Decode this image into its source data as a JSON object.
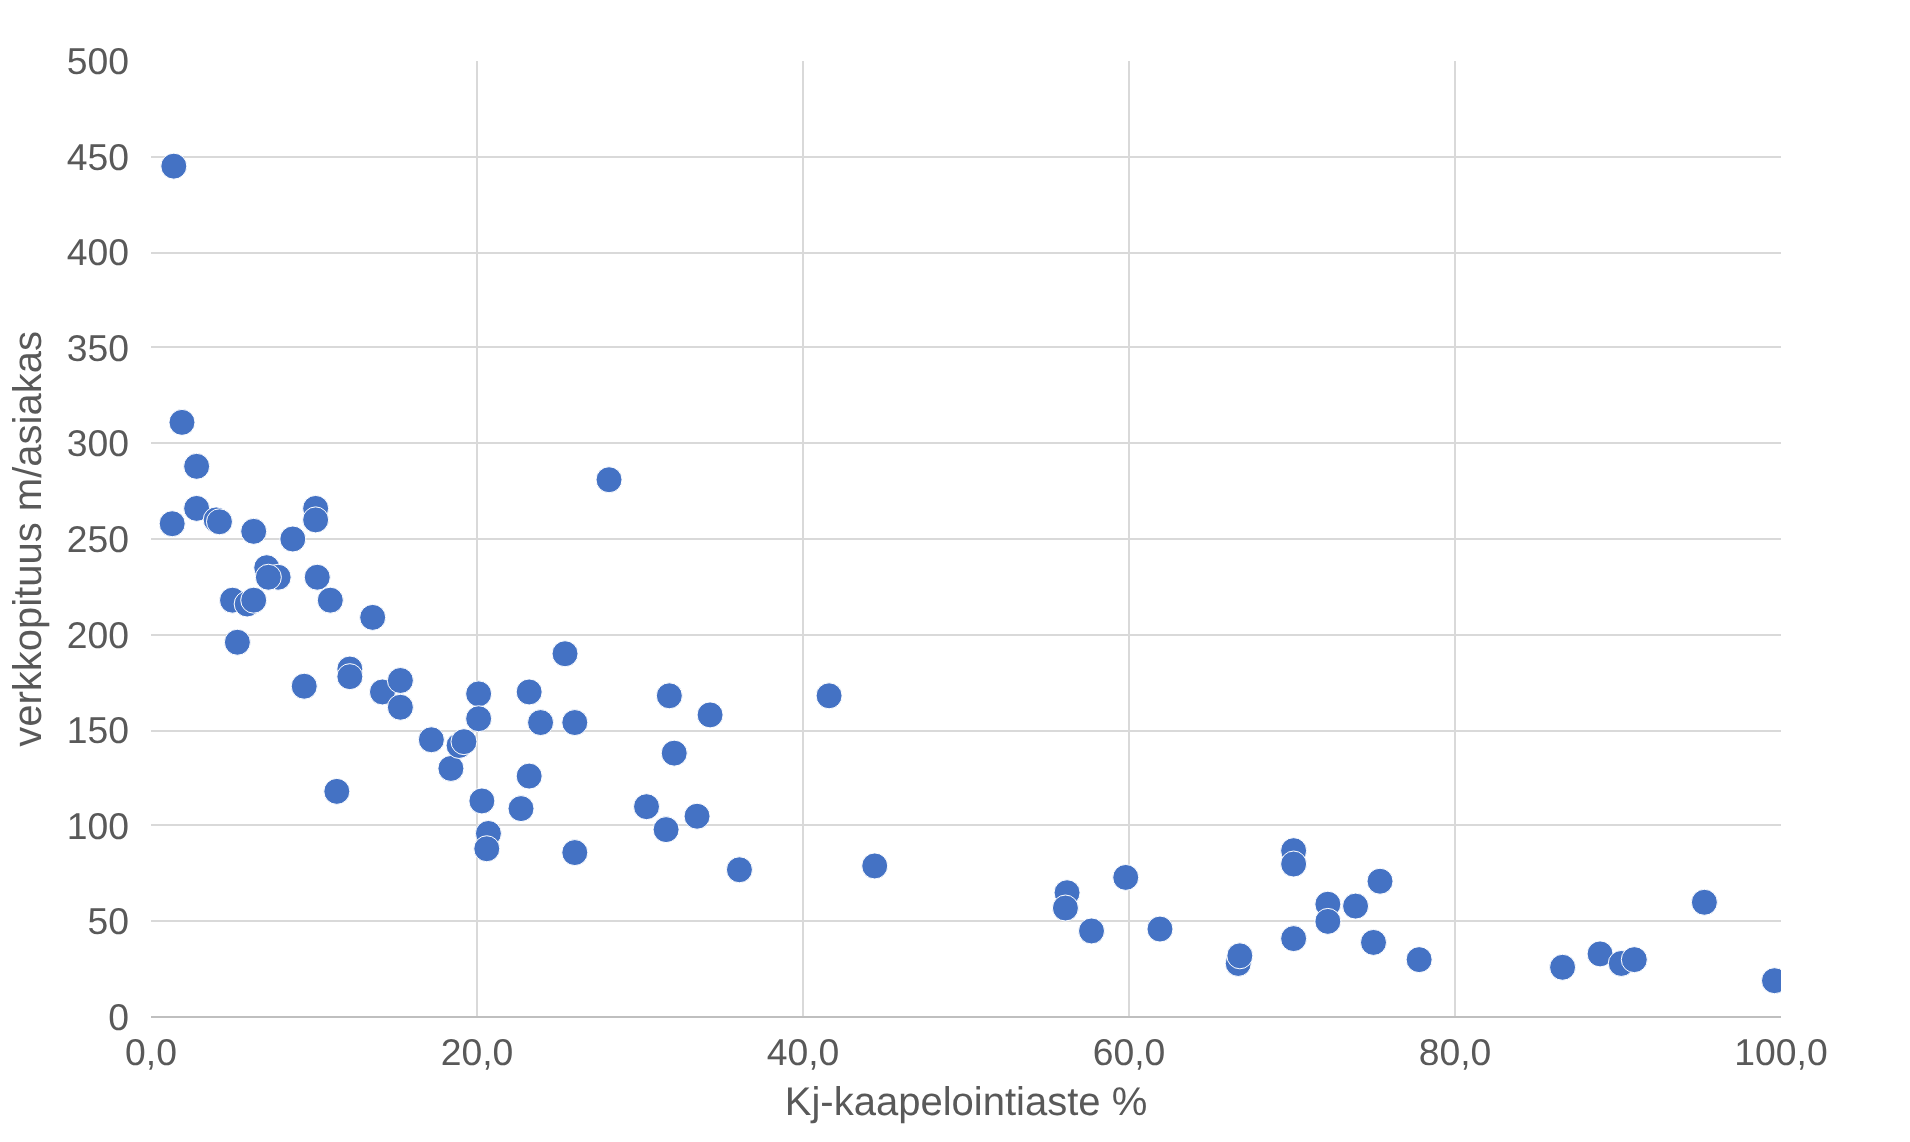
{
  "chart_data": {
    "type": "scatter",
    "xlabel": "Kj-kaapelointiaste %",
    "ylabel": "verkkopituus m/asiakas",
    "xlim": [
      0,
      100
    ],
    "xticks": [
      {
        "value": 0,
        "label": "0,0"
      },
      {
        "value": 20,
        "label": "20,0"
      },
      {
        "value": 40,
        "label": "40,0"
      },
      {
        "value": 60,
        "label": "60,0"
      },
      {
        "value": 80,
        "label": "80,0"
      },
      {
        "value": 100,
        "label": "100,0"
      }
    ],
    "ylim": [
      0,
      500
    ],
    "yticks": [
      0,
      50,
      100,
      150,
      200,
      250,
      300,
      350,
      400,
      450,
      500
    ],
    "grid": true,
    "marker": "circle",
    "series": [
      {
        "color": "#4472c4",
        "x": [
          1.4,
          1.9,
          2.8,
          1.3,
          2.8,
          4.0,
          4.2,
          6.3,
          8.7,
          10.1,
          10.1,
          5.0,
          5.9,
          6.3,
          7.1,
          7.8,
          7.2,
          5.3,
          10.2,
          11.0,
          13.6,
          9.4,
          12.2,
          12.2,
          14.2,
          15.3,
          15.3,
          11.4,
          17.2,
          18.4,
          18.9,
          19.2,
          20.1,
          20.1,
          20.3,
          20.7,
          20.6,
          23.2,
          23.9,
          23.2,
          22.7,
          25.4,
          26.0,
          26.0,
          28.1,
          31.8,
          32.1,
          34.3,
          30.4,
          31.6,
          33.5,
          36.1,
          41.6,
          44.4,
          56.2,
          56.1,
          57.7,
          59.8,
          61.9,
          66.7,
          66.8,
          70.1,
          70.1,
          70.1,
          72.2,
          72.2,
          73.9,
          75.4,
          75.0,
          77.8,
          86.6,
          88.9,
          90.2,
          91.0,
          95.3,
          99.6
        ],
        "values": [
          445,
          311,
          288,
          258,
          266,
          260,
          259,
          254,
          250,
          266,
          260,
          218,
          216,
          218,
          235,
          230,
          230,
          196,
          230,
          218,
          209,
          173,
          182,
          178,
          170,
          176,
          162,
          118,
          145,
          130,
          142,
          144,
          169,
          156,
          113,
          96,
          88,
          170,
          154,
          126,
          109,
          190,
          154,
          86,
          281,
          168,
          138,
          158,
          110,
          98,
          105,
          77,
          168,
          79,
          65,
          57,
          45,
          73,
          46,
          28,
          32,
          87,
          80,
          41,
          59,
          50,
          58,
          71,
          39,
          30,
          26,
          33,
          28,
          30,
          60,
          19
        ]
      }
    ]
  }
}
